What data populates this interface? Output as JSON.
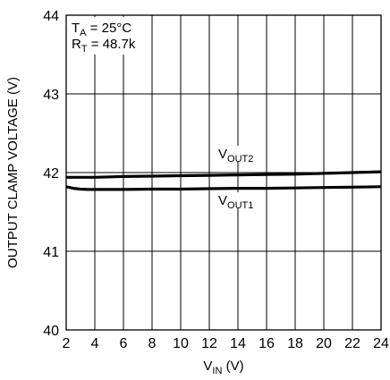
{
  "chart_data": {
    "type": "line",
    "title": "",
    "xlabel": {
      "main": "V",
      "sub": "IN",
      "suffix": " (V)"
    },
    "ylabel": "OUTPUT CLAMP VOLTAGE (V)",
    "xlim": [
      2,
      24
    ],
    "ylim": [
      40,
      44
    ],
    "x_ticks": [
      "2",
      "4",
      "6",
      "8",
      "10",
      "12",
      "14",
      "16",
      "18",
      "20",
      "22",
      "24"
    ],
    "y_ticks": [
      "40",
      "41",
      "42",
      "43",
      "44"
    ],
    "grid": true,
    "conditions": [
      {
        "main": "T",
        "sub": "A",
        "suffix": " = 25°C"
      },
      {
        "main": "R",
        "sub": "T",
        "suffix": " = 48.7k"
      }
    ],
    "series": [
      {
        "name": "VOUT2",
        "label": {
          "main": "V",
          "sub": "OUT2"
        },
        "x": [
          2,
          4,
          6,
          8,
          10,
          12,
          14,
          16,
          18,
          20,
          22,
          24
        ],
        "y": [
          41.94,
          41.94,
          41.95,
          41.955,
          41.96,
          41.965,
          41.97,
          41.975,
          41.98,
          41.99,
          42.0,
          42.01
        ]
      },
      {
        "name": "VOUT1",
        "label": {
          "main": "V",
          "sub": "OUT1"
        },
        "x": [
          2,
          2.5,
          3,
          3.5,
          4,
          6,
          8,
          10,
          12,
          14,
          16,
          18,
          20,
          22,
          24
        ],
        "y": [
          41.82,
          41.8,
          41.79,
          41.785,
          41.785,
          41.785,
          41.79,
          41.79,
          41.795,
          41.8,
          41.8,
          41.805,
          41.81,
          41.815,
          41.82
        ]
      }
    ]
  }
}
